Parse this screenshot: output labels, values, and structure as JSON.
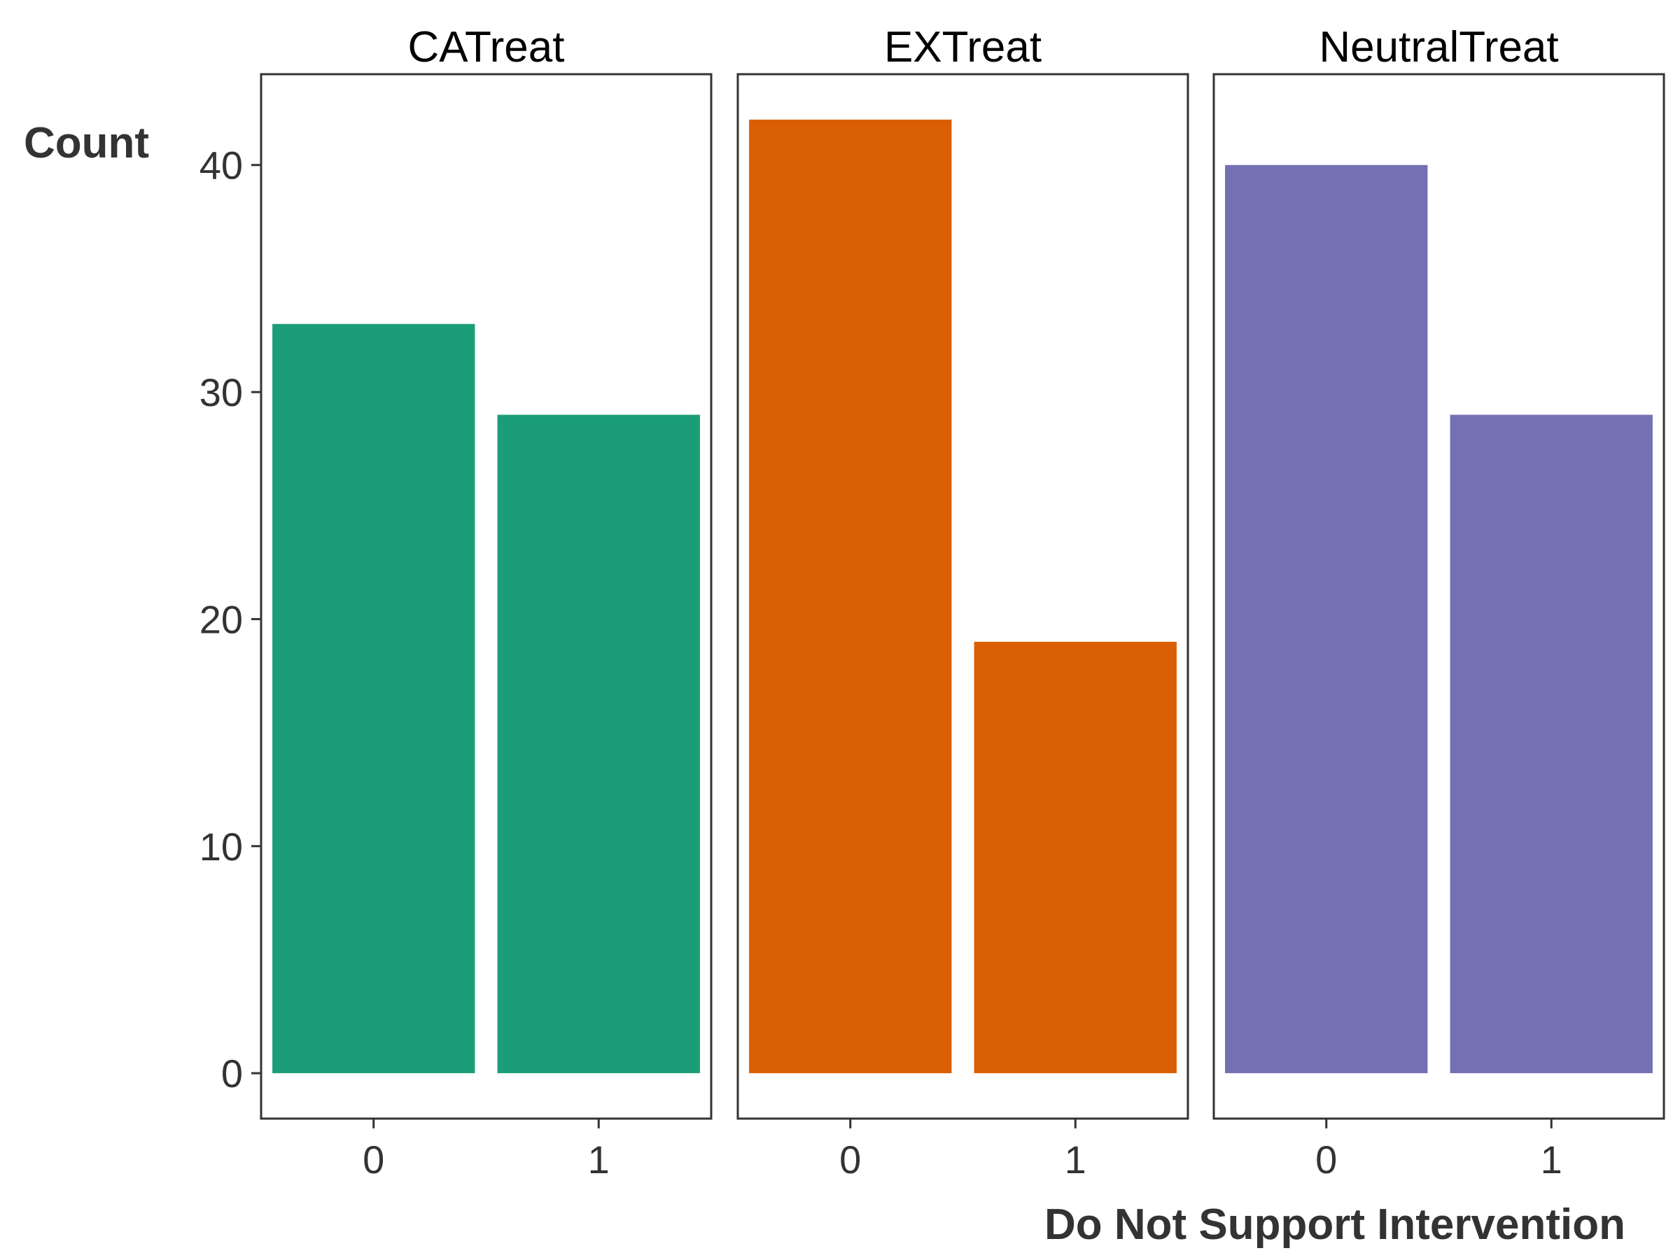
{
  "chart_data": {
    "type": "bar",
    "xlabel": "Do Not Support Intervention",
    "ylabel": "Count",
    "ylim": [
      -2,
      44
    ],
    "yticks": [
      0,
      10,
      20,
      30,
      40
    ],
    "categories": [
      "0",
      "1"
    ],
    "grid": false,
    "legend": "none",
    "panels": [
      {
        "name": "CATreat",
        "color": "#1b9e77",
        "values": [
          33,
          29
        ]
      },
      {
        "name": "EXTreat",
        "color": "#d95f02",
        "values": [
          42,
          19
        ]
      },
      {
        "name": "NeutralTreat",
        "color": "#7570b3",
        "values": [
          40,
          29
        ]
      }
    ]
  }
}
